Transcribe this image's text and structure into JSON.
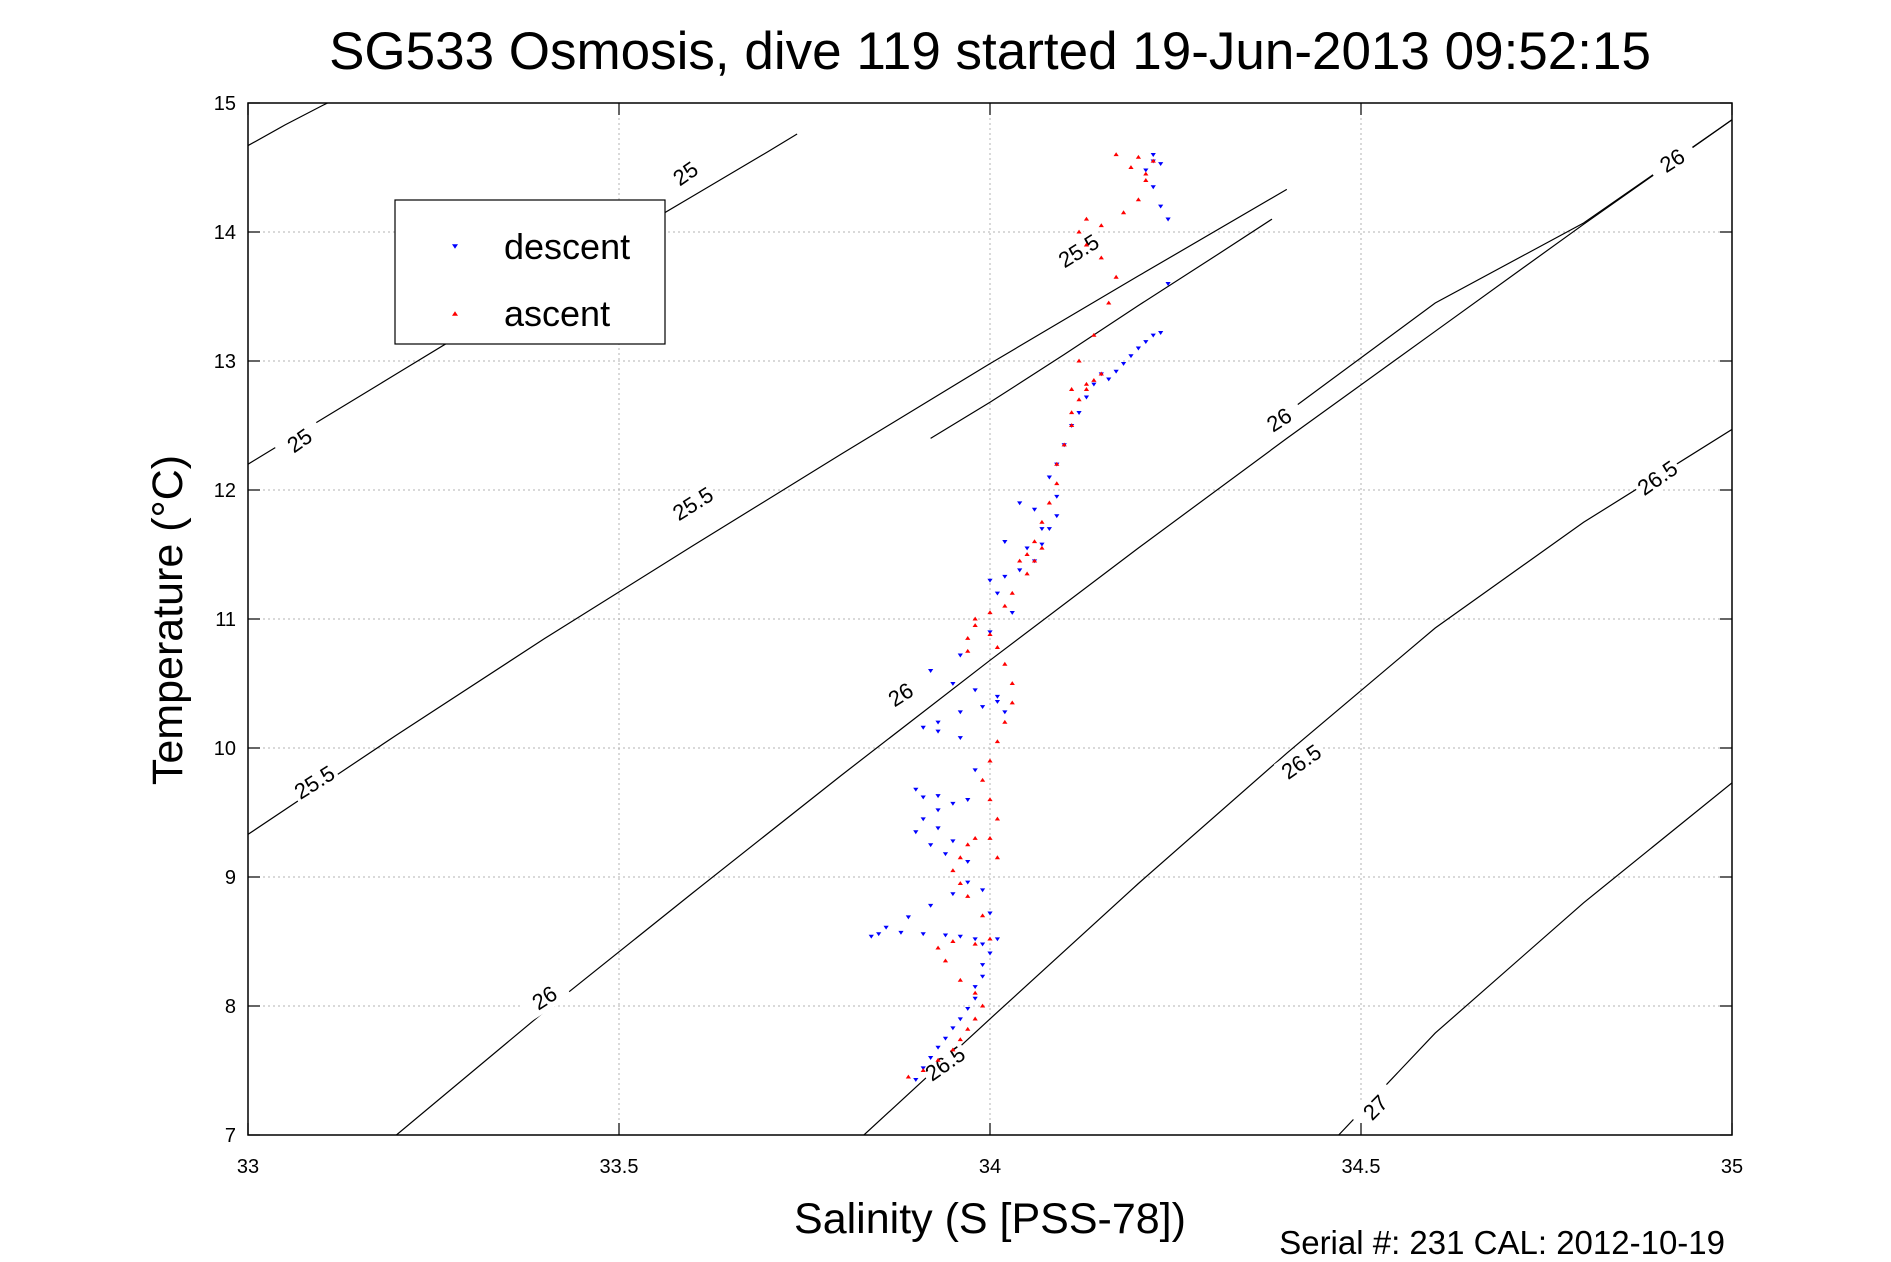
{
  "chart_data": {
    "type": "scatter",
    "title": "SG533 Osmosis, dive 119 started 19-Jun-2013 09:52:15",
    "xlabel": "Salinity (S [PSS-78])",
    "ylabel": "Temperature (°C)",
    "xlim": [
      33,
      35
    ],
    "ylim": [
      7,
      15
    ],
    "x_ticks": [
      "33",
      "33.5",
      "34",
      "34.5",
      "35"
    ],
    "y_ticks": [
      "7",
      "8",
      "9",
      "10",
      "11",
      "12",
      "13",
      "14",
      "15"
    ],
    "grid": true,
    "legend_position": "top-left",
    "footer": "Serial #: 231  CAL: 2012-10-19",
    "colors": {
      "descent": "#0000ff",
      "ascent": "#ff0000",
      "contour": "#000000"
    },
    "contours": [
      {
        "level": "25",
        "x": [
          33.0,
          33.05,
          33.1,
          33.15,
          33.2
        ],
        "y": [
          14.67,
          14.83,
          14.98,
          15.12,
          15.25
        ]
      },
      {
        "level": "25",
        "x": [
          33.0,
          33.1,
          33.2,
          33.3,
          33.4,
          33.5,
          33.6,
          33.7,
          33.74
        ],
        "y": [
          12.2,
          12.55,
          12.9,
          13.25,
          13.6,
          13.94,
          14.28,
          14.62,
          14.76
        ]
      },
      {
        "level": "25.5",
        "x": [
          33.0,
          33.2,
          33.4,
          33.6,
          33.8,
          34.0,
          34.2,
          34.4
        ],
        "y": [
          9.33,
          10.1,
          10.85,
          11.57,
          12.28,
          12.98,
          13.66,
          14.33
        ]
      },
      {
        "level": "25.5",
        "x": [
          33.92,
          34.0,
          34.1,
          34.2,
          34.3,
          34.38
        ],
        "y": [
          12.4,
          12.68,
          13.05,
          13.43,
          13.8,
          14.1
        ]
      },
      {
        "level": "26",
        "x": [
          33.2,
          33.4,
          33.6,
          33.8,
          34.0,
          34.2,
          34.4,
          34.6,
          34.8,
          35.0
        ],
        "y": [
          7.0,
          7.96,
          8.88,
          9.79,
          10.68,
          11.55,
          12.4,
          13.23,
          14.06,
          14.87
        ]
      },
      {
        "level": "26",
        "x": [
          34.4,
          34.6,
          34.8,
          35.0
        ],
        "y": [
          12.6,
          13.45,
          14.07,
          14.87
        ]
      },
      {
        "level": "26.5",
        "x": [
          33.83,
          34.0,
          34.2,
          34.4,
          34.6,
          34.8,
          35.0
        ],
        "y": [
          7.0,
          7.9,
          8.95,
          9.96,
          10.93,
          11.75,
          12.47
        ]
      },
      {
        "level": "27",
        "x": [
          34.47,
          34.6,
          34.8,
          35.0
        ],
        "y": [
          7.0,
          7.79,
          8.8,
          9.73
        ]
      }
    ],
    "contour_labels": [
      {
        "text": "25",
        "x": 33.59,
        "y": 14.45,
        "angle": -35
      },
      {
        "text": "25",
        "x": 33.07,
        "y": 12.38,
        "angle": -35
      },
      {
        "text": "25.5",
        "x": 33.09,
        "y": 9.73,
        "angle": -32
      },
      {
        "text": "25.5",
        "x": 33.6,
        "y": 11.89,
        "angle": -32
      },
      {
        "text": "25.5",
        "x": 34.12,
        "y": 13.85,
        "angle": -32
      },
      {
        "text": "26",
        "x": 33.4,
        "y": 8.06,
        "angle": -33
      },
      {
        "text": "26",
        "x": 33.88,
        "y": 10.41,
        "angle": -33
      },
      {
        "text": "26",
        "x": 34.39,
        "y": 12.54,
        "angle": -33
      },
      {
        "text": "26",
        "x": 34.92,
        "y": 14.55,
        "angle": -33
      },
      {
        "text": "26.5",
        "x": 33.94,
        "y": 7.55,
        "angle": -35
      },
      {
        "text": "26.5",
        "x": 34.42,
        "y": 9.89,
        "angle": -35
      },
      {
        "text": "26.5",
        "x": 34.9,
        "y": 12.09,
        "angle": -35
      },
      {
        "text": "27",
        "x": 34.52,
        "y": 7.21,
        "angle": -45
      }
    ],
    "series": [
      {
        "name": "descent",
        "marker": "triangle-down",
        "x": [
          33.9,
          33.91,
          33.92,
          33.93,
          33.94,
          33.95,
          33.96,
          33.97,
          33.98,
          33.98,
          33.99,
          33.99,
          34.0,
          33.99,
          33.98,
          33.96,
          33.94,
          33.91,
          33.88,
          33.85,
          33.84,
          33.86,
          33.89,
          33.92,
          33.95,
          33.97,
          34.0,
          34.01,
          33.99,
          33.97,
          33.95,
          33.93,
          33.91,
          33.9,
          33.92,
          33.94,
          33.93,
          33.91,
          33.9,
          33.93,
          33.95,
          33.97,
          33.98,
          33.96,
          33.93,
          33.91,
          33.93,
          33.96,
          33.99,
          34.01,
          34.02,
          34.01,
          33.98,
          33.95,
          33.92,
          33.96,
          34.0,
          34.03,
          34.01,
          34.0,
          34.02,
          34.04,
          34.06,
          34.07,
          34.08,
          34.06,
          34.04,
          34.02,
          34.05,
          34.07,
          34.09,
          34.09,
          34.08,
          34.09,
          34.1,
          34.11,
          34.12,
          34.13,
          34.14,
          34.15,
          34.16,
          34.17,
          34.18,
          34.19,
          34.2,
          34.21,
          34.22,
          34.23,
          34.24,
          34.24,
          34.23,
          34.22,
          34.21,
          34.22,
          34.23,
          34.22
        ],
        "y": [
          7.43,
          7.52,
          7.6,
          7.68,
          7.75,
          7.83,
          7.9,
          7.98,
          8.06,
          8.15,
          8.23,
          8.32,
          8.41,
          8.48,
          8.52,
          8.54,
          8.55,
          8.56,
          8.57,
          8.56,
          8.54,
          8.61,
          8.69,
          8.78,
          8.87,
          8.96,
          8.72,
          8.52,
          8.9,
          9.12,
          9.28,
          9.38,
          9.45,
          9.35,
          9.25,
          9.18,
          9.52,
          9.62,
          9.68,
          9.63,
          9.57,
          9.6,
          9.83,
          10.08,
          10.13,
          10.16,
          10.2,
          10.28,
          10.32,
          10.36,
          10.28,
          10.4,
          10.45,
          10.5,
          10.6,
          10.72,
          10.9,
          11.05,
          11.2,
          11.3,
          11.33,
          11.38,
          11.45,
          11.58,
          11.7,
          11.85,
          11.9,
          11.6,
          11.55,
          11.7,
          11.8,
          11.95,
          12.1,
          12.2,
          12.35,
          12.5,
          12.6,
          12.72,
          12.82,
          12.9,
          12.86,
          12.92,
          12.98,
          13.04,
          13.1,
          13.15,
          13.2,
          13.22,
          13.6,
          14.1,
          14.2,
          14.35,
          14.48,
          14.55,
          14.53,
          14.6
        ]
      },
      {
        "name": "ascent",
        "marker": "triangle-up",
        "x": [
          33.89,
          33.91,
          33.93,
          33.95,
          33.96,
          33.97,
          33.98,
          33.99,
          33.98,
          33.96,
          33.94,
          33.93,
          33.95,
          33.98,
          34.0,
          33.99,
          33.97,
          33.96,
          33.95,
          33.96,
          33.97,
          33.98,
          34.0,
          34.01,
          34.01,
          34.0,
          33.99,
          34.0,
          34.01,
          34.02,
          34.03,
          34.03,
          34.02,
          34.01,
          34.0,
          33.98,
          33.97,
          33.97,
          33.98,
          34.0,
          34.02,
          34.03,
          34.05,
          34.06,
          34.07,
          34.05,
          34.04,
          34.06,
          34.07,
          34.08,
          34.09,
          34.09,
          34.1,
          34.11,
          34.11,
          34.12,
          34.13,
          34.14,
          34.15,
          34.13,
          34.11,
          34.12,
          34.14,
          34.16,
          34.17,
          34.15,
          34.13,
          34.12,
          34.13,
          34.15,
          34.18,
          34.2,
          34.21,
          34.19,
          34.17,
          34.2,
          34.22,
          34.21
        ],
        "y": [
          7.45,
          7.5,
          7.58,
          7.66,
          7.74,
          7.82,
          7.9,
          8.0,
          8.1,
          8.2,
          8.35,
          8.45,
          8.5,
          8.48,
          8.52,
          8.7,
          8.85,
          8.95,
          9.05,
          9.15,
          9.25,
          9.3,
          9.3,
          9.15,
          9.45,
          9.6,
          9.75,
          9.9,
          10.05,
          10.2,
          10.35,
          10.5,
          10.65,
          10.78,
          10.88,
          10.95,
          10.85,
          10.75,
          11.0,
          11.05,
          11.1,
          11.2,
          11.35,
          11.45,
          11.55,
          11.5,
          11.45,
          11.6,
          11.75,
          11.9,
          12.05,
          12.2,
          12.35,
          12.5,
          12.6,
          12.7,
          12.78,
          12.85,
          12.9,
          12.82,
          12.78,
          13.0,
          13.2,
          13.45,
          13.65,
          13.8,
          13.9,
          14.0,
          14.1,
          14.05,
          14.15,
          14.25,
          14.4,
          14.5,
          14.6,
          14.58,
          14.55,
          14.45
        ]
      }
    ]
  }
}
